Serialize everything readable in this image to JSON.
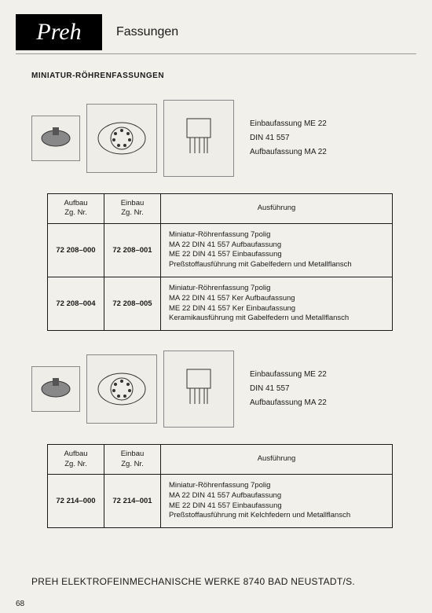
{
  "header": {
    "logo": "Preh",
    "title": "Fassungen"
  },
  "section_title": "MINIATUR-RÖHRENFASSUNGEN",
  "diagram_block1": {
    "labels": [
      "Einbaufassung ME 22",
      "DIN 41 557",
      "Aufbaufassung MA 22"
    ]
  },
  "table1": {
    "headers": {
      "aufbau": "Aufbau\nZg. Nr.",
      "einbau": "Einbau\nZg. Nr.",
      "ausf": "Ausführung"
    },
    "rows": [
      {
        "aufbau": "72 208–000",
        "einbau": "72 208–001",
        "desc": "Miniatur-Röhrenfassung 7polig\nMA 22 DIN 41 557 Aufbaufassung\nME 22 DIN 41 557 Einbaufassung\nPreßstoffausführung mit Gabelfedern und Metallflansch"
      },
      {
        "aufbau": "72 208–004",
        "einbau": "72 208–005",
        "desc": "Miniatur-Röhrenfassung 7polig\nMA 22 DIN 41 557 Ker Aufbaufassung\nME 22 DIN 41 557 Ker Einbaufassung\nKeramikausführung mit Gabelfedern und Metallflansch"
      }
    ]
  },
  "diagram_block2": {
    "labels": [
      "Einbaufassung ME 22",
      "DIN 41 557",
      "Aufbaufassung MA 22"
    ]
  },
  "table2": {
    "headers": {
      "aufbau": "Aufbau\nZg. Nr.",
      "einbau": "Einbau\nZg. Nr.",
      "ausf": "Ausführung"
    },
    "rows": [
      {
        "aufbau": "72 214–000",
        "einbau": "72 214–001",
        "desc": "Miniatur-Röhrenfassung 7polig\nMA 22 DIN 41 557 Aufbaufassung\nME 22 DIN 41 557 Einbaufassung\nPreßstoffausführung mit Kelchfedern und Metallflansch"
      }
    ]
  },
  "footer": {
    "company": "PREH ELEKTROFEINMECHANISCHE WERKE  8740 BAD NEUSTADT/S.",
    "page": "68"
  }
}
